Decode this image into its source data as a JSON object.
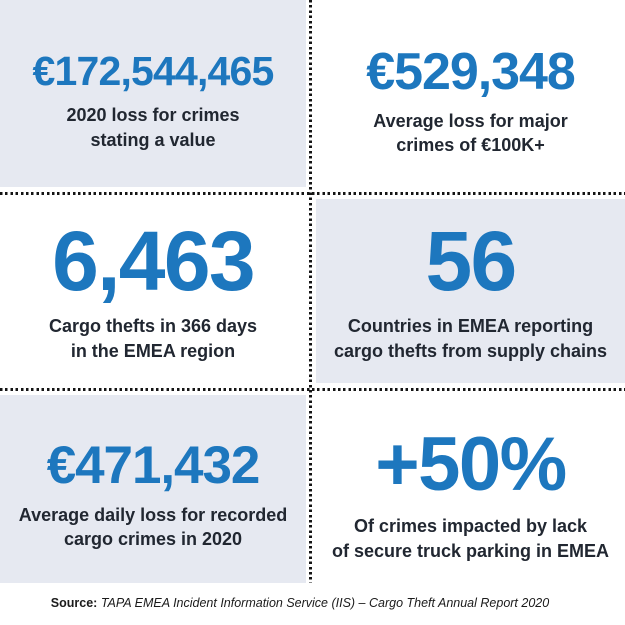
{
  "colors": {
    "accent_blue": "#1d77be",
    "tile_gray": "#e6e9f1",
    "text_dark": "#212731",
    "dot": "#141414",
    "page_bg": "#ffffff"
  },
  "stats": [
    {
      "value": "€172,544,465",
      "line1": "2020 loss for crimes",
      "line2": "stating a value"
    },
    {
      "value": "€529,348",
      "line1": "Average loss for major",
      "line2": "crimes of €100K+"
    },
    {
      "value": "6,463",
      "line1": "Cargo thefts in 366 days",
      "line2": "in the EMEA region"
    },
    {
      "value": "56",
      "line1": "Countries in EMEA reporting",
      "line2": "cargo thefts from supply chains"
    },
    {
      "value": "€471,432",
      "line1": "Average daily loss for recorded",
      "line2": "cargo crimes in 2020"
    },
    {
      "value": "+50%",
      "line1": "Of crimes impacted by lack",
      "line2": "of secure truck parking in EMEA"
    }
  ],
  "footer": {
    "source_label": "Source:",
    "source_text": "TAPA EMEA Incident Information Service (IIS) – Cargo Theft Annual Report 2020"
  },
  "chart_data": {
    "type": "table",
    "title": "TAPA EMEA cargo theft statistics 2020",
    "categories": [
      "2020 loss for crimes stating a value",
      "Average loss for major crimes of €100K+",
      "Cargo thefts in 366 days in the EMEA region",
      "Countries in EMEA reporting cargo thefts from supply chains",
      "Average daily loss for recorded cargo crimes in 2020",
      "Of crimes impacted by lack of secure truck parking in EMEA"
    ],
    "values": [
      "€172,544,465",
      "€529,348",
      "6,463",
      "56",
      "€471,432",
      "+50%"
    ],
    "numeric_values": [
      172544465,
      529348,
      6463,
      56,
      471432,
      50
    ],
    "layout": "2x3 grid of stat tiles, alternating gray/white, dotted dividers",
    "source": "TAPA EMEA Incident Information Service (IIS) – Cargo Theft Annual Report 2020"
  }
}
